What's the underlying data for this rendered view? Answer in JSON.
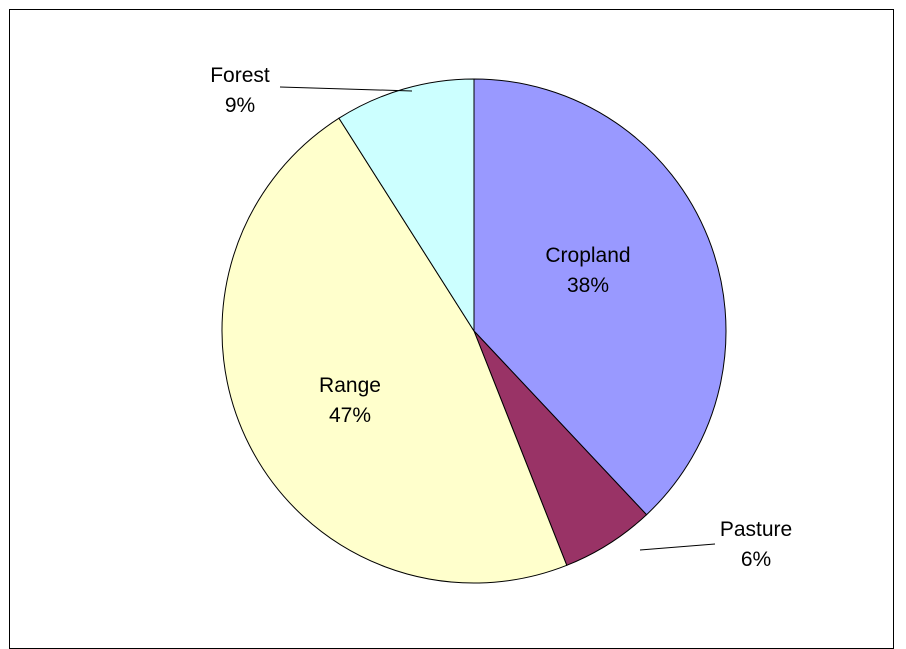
{
  "chart_data": {
    "type": "pie",
    "title": "",
    "start_angle_deg": 0,
    "direction": "clockwise",
    "slices": [
      {
        "name": "Cropland",
        "value": 38,
        "label": "38%",
        "color": "#9999ff"
      },
      {
        "name": "Pasture",
        "value": 6,
        "label": "6%",
        "color": "#993366"
      },
      {
        "name": "Range",
        "value": 47,
        "label": "47%",
        "color": "#ffffcc"
      },
      {
        "name": "Forest",
        "value": 9,
        "label": "9%",
        "color": "#ccffff"
      }
    ]
  }
}
